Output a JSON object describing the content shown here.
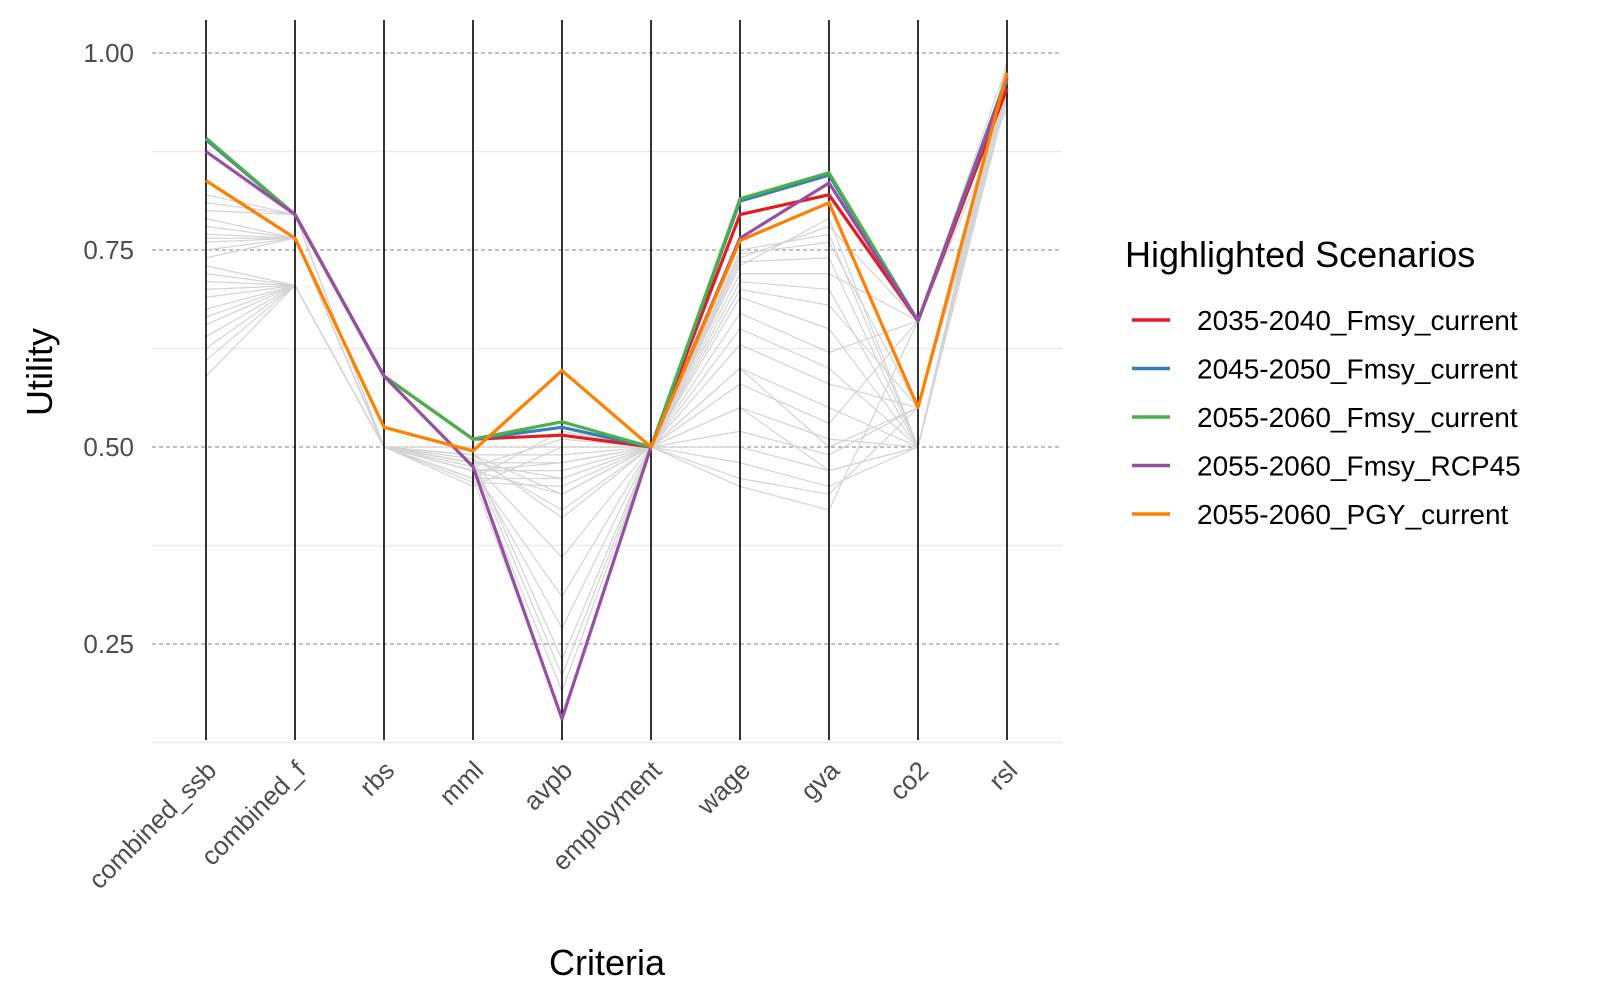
{
  "chart_data": {
    "type": "line",
    "subtype": "parallel-coordinates",
    "xlabel": "Criteria",
    "ylabel": "Utility",
    "categories": [
      "combined_ssb",
      "combined_f",
      "rbs",
      "mml",
      "avpb",
      "employment",
      "wage",
      "gva",
      "co2",
      "rsl"
    ],
    "ylim": [
      0.12,
      1.0
    ],
    "yticks": [
      0.25,
      0.5,
      0.75,
      1.0
    ],
    "ytick_labels": [
      "0.25",
      "0.50",
      "0.75",
      "1.00"
    ],
    "grid": true,
    "legend": {
      "title": "Highlighted Scenarios",
      "placement": "right"
    },
    "series": [
      {
        "name": "2035-2040_Fmsy_current",
        "color": "#e41a1c",
        "values": [
          0.89,
          0.795,
          0.59,
          0.51,
          0.515,
          0.5,
          0.795,
          0.82,
          0.66,
          0.955
        ]
      },
      {
        "name": "2045-2050_Fmsy_current",
        "color": "#377eb8",
        "values": [
          0.89,
          0.795,
          0.59,
          0.51,
          0.525,
          0.5,
          0.812,
          0.845,
          0.66,
          0.965
        ]
      },
      {
        "name": "2055-2060_Fmsy_current",
        "color": "#4daf4a",
        "values": [
          0.892,
          0.795,
          0.59,
          0.51,
          0.532,
          0.5,
          0.815,
          0.848,
          0.66,
          0.97
        ]
      },
      {
        "name": "2055-2060_Fmsy_RCP45",
        "color": "#984ea3",
        "values": [
          0.875,
          0.795,
          0.59,
          0.475,
          0.155,
          0.5,
          0.765,
          0.835,
          0.66,
          0.968
        ]
      },
      {
        "name": "2055-2060_PGY_current",
        "color": "#ff7f00",
        "values": [
          0.838,
          0.765,
          0.525,
          0.495,
          0.597,
          0.5,
          0.762,
          0.81,
          0.55,
          0.975
        ]
      }
    ],
    "background_series": [
      [
        0.59,
        0.705,
        0.5,
        0.46,
        0.16,
        0.5,
        0.45,
        0.42,
        0.66,
        0.93
      ],
      [
        0.61,
        0.705,
        0.5,
        0.47,
        0.19,
        0.5,
        0.46,
        0.44,
        0.55,
        0.94
      ],
      [
        0.625,
        0.705,
        0.5,
        0.48,
        0.21,
        0.5,
        0.48,
        0.45,
        0.5,
        0.945
      ],
      [
        0.64,
        0.705,
        0.5,
        0.485,
        0.23,
        0.5,
        0.5,
        0.47,
        0.5,
        0.95
      ],
      [
        0.655,
        0.705,
        0.5,
        0.475,
        0.27,
        0.5,
        0.52,
        0.49,
        0.55,
        0.955
      ],
      [
        0.665,
        0.705,
        0.5,
        0.47,
        0.31,
        0.5,
        0.55,
        0.51,
        0.5,
        0.96
      ],
      [
        0.675,
        0.705,
        0.5,
        0.48,
        0.36,
        0.5,
        0.58,
        0.53,
        0.66,
        0.965
      ],
      [
        0.69,
        0.705,
        0.5,
        0.49,
        0.41,
        0.5,
        0.6,
        0.55,
        0.5,
        0.97
      ],
      [
        0.7,
        0.705,
        0.5,
        0.485,
        0.42,
        0.5,
        0.63,
        0.58,
        0.55,
        0.975
      ],
      [
        0.71,
        0.705,
        0.5,
        0.47,
        0.44,
        0.5,
        0.65,
        0.6,
        0.5,
        0.98
      ],
      [
        0.72,
        0.705,
        0.5,
        0.455,
        0.45,
        0.5,
        0.67,
        0.62,
        0.66,
        0.985
      ],
      [
        0.73,
        0.705,
        0.5,
        0.46,
        0.46,
        0.5,
        0.69,
        0.65,
        0.5,
        0.99
      ],
      [
        0.74,
        0.765,
        0.5,
        0.47,
        0.47,
        0.5,
        0.7,
        0.68,
        0.55,
        0.94
      ],
      [
        0.75,
        0.765,
        0.5,
        0.48,
        0.48,
        0.5,
        0.71,
        0.7,
        0.5,
        0.95
      ],
      [
        0.76,
        0.765,
        0.5,
        0.49,
        0.49,
        0.5,
        0.72,
        0.72,
        0.66,
        0.96
      ],
      [
        0.765,
        0.765,
        0.5,
        0.5,
        0.5,
        0.5,
        0.735,
        0.74,
        0.5,
        0.97
      ],
      [
        0.77,
        0.765,
        0.5,
        0.475,
        0.51,
        0.5,
        0.745,
        0.76,
        0.55,
        0.98
      ],
      [
        0.78,
        0.765,
        0.5,
        0.46,
        0.52,
        0.5,
        0.75,
        0.77,
        0.5,
        0.99
      ],
      [
        0.79,
        0.765,
        0.5,
        0.45,
        0.5,
        0.5,
        0.74,
        0.78,
        0.66,
        0.96
      ],
      [
        0.8,
        0.795,
        0.5,
        0.47,
        0.48,
        0.5,
        0.73,
        0.79,
        0.5,
        0.97
      ],
      [
        0.81,
        0.795,
        0.5,
        0.48,
        0.46,
        0.5,
        0.6,
        0.5,
        0.55,
        0.95
      ],
      [
        0.82,
        0.795,
        0.5,
        0.49,
        0.44,
        0.5,
        0.55,
        0.47,
        0.5,
        0.96
      ]
    ]
  }
}
